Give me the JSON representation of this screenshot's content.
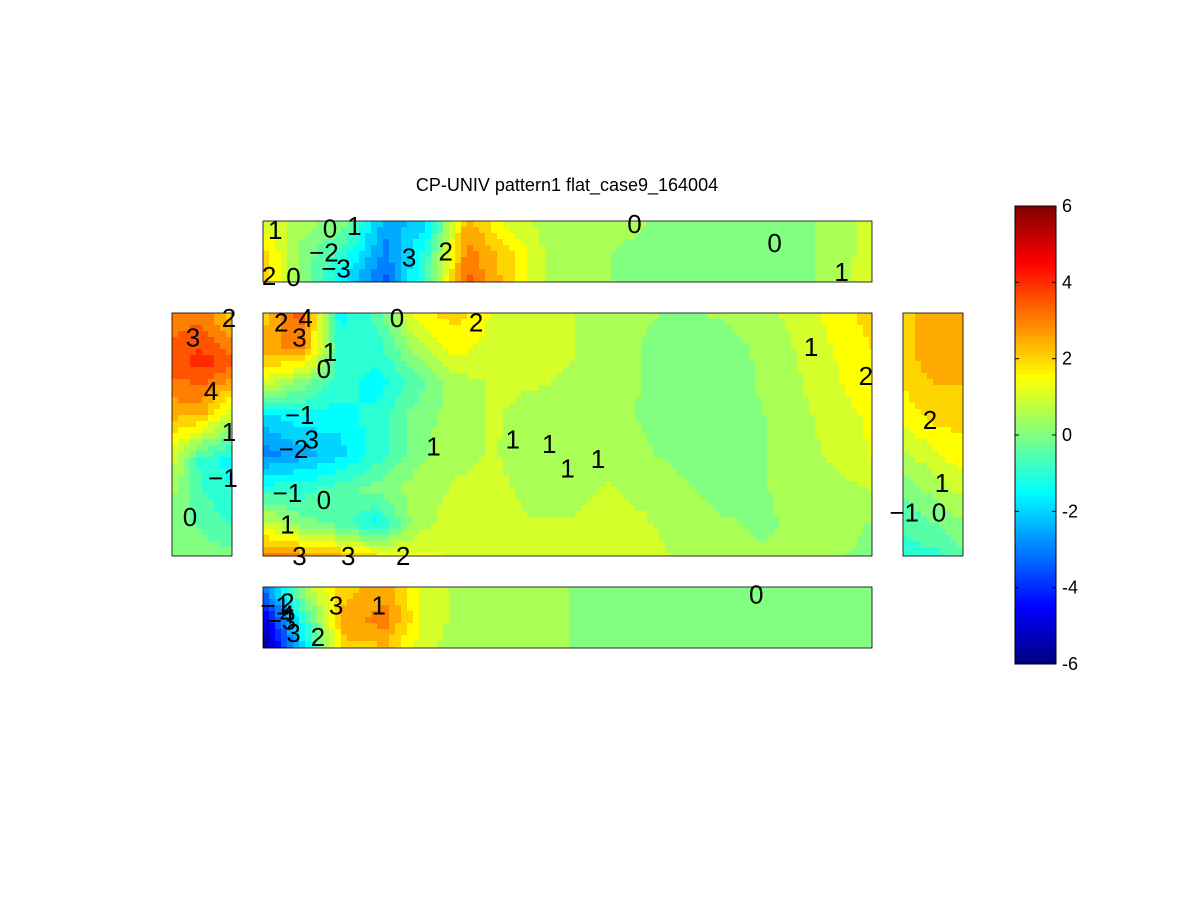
{
  "chart_data": {
    "type": "heatmap",
    "title": "CP-UNIV pattern1 flat_case9_164004",
    "colormap": "jet",
    "clim": [
      -6,
      6
    ],
    "colorbar": {
      "ticks": [
        "-6",
        "-4",
        "-2",
        "0",
        "2",
        "4",
        "6"
      ],
      "tick_values": [
        -6,
        -4,
        -2,
        0,
        2,
        4,
        6
      ]
    },
    "panels": [
      {
        "name": "top",
        "grid": [
          [
            1.0,
            0.5,
            0.0,
            -2.5,
            -2.0,
            2.5,
            1.0,
            0.5,
            0.4,
            0.3,
            0.2,
            0.0,
            -0.1,
            0.0,
            0.5,
            1.0
          ],
          [
            2.0,
            0.0,
            -1.0,
            -3.0,
            -1.0,
            3.0,
            2.0,
            0.6,
            0.3,
            0.2,
            0.1,
            0.0,
            -0.1,
            0.0,
            0.5,
            1.0
          ],
          [
            2.0,
            0.0,
            -2.0,
            -3.5,
            -0.5,
            3.5,
            2.0,
            0.6,
            0.3,
            0.2,
            0.0,
            -0.1,
            -0.2,
            0.0,
            0.5,
            1.2
          ]
        ],
        "contour_labels": [
          {
            "text": "1",
            "u": 0.02,
            "v": 0.15
          },
          {
            "text": "0",
            "u": 0.11,
            "v": 0.12
          },
          {
            "text": "1",
            "u": 0.15,
            "v": 0.08
          },
          {
            "text": "−2",
            "u": 0.1,
            "v": 0.52
          },
          {
            "text": "−3",
            "u": 0.12,
            "v": 0.78
          },
          {
            "text": "2",
            "u": 0.01,
            "v": 0.9
          },
          {
            "text": "0",
            "u": 0.05,
            "v": 0.92
          },
          {
            "text": "3",
            "u": 0.24,
            "v": 0.6
          },
          {
            "text": "2",
            "u": 0.3,
            "v": 0.5
          },
          {
            "text": "0",
            "u": 0.61,
            "v": 0.05
          },
          {
            "text": "0",
            "u": 0.84,
            "v": 0.36
          },
          {
            "text": "1",
            "u": 0.95,
            "v": 0.84
          }
        ]
      },
      {
        "name": "center",
        "grid": [
          [
            2.0,
            3.5,
            -1.5,
            -0.5,
            1.5,
            2.0,
            1.2,
            1.0,
            0.8,
            0.5,
            0.3,
            0.2,
            0.3,
            0.5,
            1.0,
            1.5,
            2.0
          ],
          [
            2.5,
            3.0,
            -1.0,
            -1.0,
            0.5,
            1.5,
            1.0,
            0.9,
            0.8,
            0.5,
            0.2,
            0.0,
            0.1,
            0.3,
            0.8,
            1.3,
            1.8
          ],
          [
            1.0,
            0.0,
            -1.0,
            -1.5,
            -0.5,
            0.5,
            0.8,
            0.8,
            0.7,
            0.5,
            0.2,
            0.0,
            0.0,
            0.3,
            0.7,
            1.2,
            1.6
          ],
          [
            -2.0,
            -1.5,
            -1.5,
            -1.0,
            0.0,
            0.5,
            0.8,
            0.6,
            0.5,
            0.4,
            0.2,
            0.0,
            0.0,
            0.2,
            0.6,
            1.0,
            1.4
          ],
          [
            -3.0,
            -2.5,
            -2.0,
            -1.0,
            0.0,
            0.6,
            0.8,
            0.5,
            0.4,
            0.5,
            0.3,
            0.1,
            0.0,
            0.2,
            0.5,
            0.9,
            1.3
          ],
          [
            -1.0,
            -1.0,
            -0.5,
            0.0,
            0.5,
            0.8,
            0.9,
            0.6,
            0.5,
            0.8,
            0.6,
            0.3,
            0.1,
            0.2,
            0.4,
            0.6,
            0.8
          ],
          [
            1.0,
            0.0,
            -0.5,
            -1.5,
            0.5,
            1.0,
            0.9,
            0.8,
            0.8,
            1.0,
            0.8,
            0.5,
            0.3,
            0.2,
            0.3,
            0.4,
            0.2
          ],
          [
            3.0,
            3.0,
            2.5,
            2.0,
            1.5,
            1.2,
            1.0,
            0.9,
            1.0,
            1.0,
            1.0,
            0.6,
            0.4,
            0.3,
            0.3,
            0.3,
            0.1
          ]
        ],
        "contour_labels": [
          {
            "text": "2",
            "u": 0.03,
            "v": 0.04
          },
          {
            "text": "4",
            "u": 0.07,
            "v": 0.02
          },
          {
            "text": "3",
            "u": 0.06,
            "v": 0.1
          },
          {
            "text": "1",
            "u": 0.11,
            "v": 0.16
          },
          {
            "text": "0",
            "u": 0.1,
            "v": 0.23
          },
          {
            "text": "0",
            "u": 0.22,
            "v": 0.02
          },
          {
            "text": "2",
            "u": 0.35,
            "v": 0.04
          },
          {
            "text": "−1",
            "u": 0.06,
            "v": 0.42
          },
          {
            "text": "−2",
            "u": 0.05,
            "v": 0.56
          },
          {
            "text": "3",
            "u": 0.08,
            "v": 0.52
          },
          {
            "text": "−1",
            "u": 0.04,
            "v": 0.74
          },
          {
            "text": "0",
            "u": 0.1,
            "v": 0.77
          },
          {
            "text": "1",
            "u": 0.04,
            "v": 0.87
          },
          {
            "text": "3",
            "u": 0.06,
            "v": 1.0
          },
          {
            "text": "3",
            "u": 0.14,
            "v": 1.0
          },
          {
            "text": "2",
            "u": 0.23,
            "v": 1.0
          },
          {
            "text": "1",
            "u": 0.28,
            "v": 0.55
          },
          {
            "text": "1",
            "u": 0.41,
            "v": 0.52
          },
          {
            "text": "1",
            "u": 0.47,
            "v": 0.54
          },
          {
            "text": "1",
            "u": 0.5,
            "v": 0.64
          },
          {
            "text": "1",
            "u": 0.55,
            "v": 0.6
          },
          {
            "text": "1",
            "u": 0.9,
            "v": 0.14
          },
          {
            "text": "2",
            "u": 0.99,
            "v": 0.26
          }
        ]
      },
      {
        "name": "left",
        "grid": [
          [
            3.0,
            3.0,
            2.0
          ],
          [
            3.5,
            4.0,
            3.5
          ],
          [
            2.5,
            2.5,
            1.0
          ],
          [
            1.0,
            -1.0,
            -1.5
          ],
          [
            0.0,
            -0.5,
            -1.0
          ],
          [
            0.0,
            0.0,
            0.0
          ]
        ],
        "contour_labels": [
          {
            "text": "2",
            "u": 0.95,
            "v": 0.02
          },
          {
            "text": "3",
            "u": 0.35,
            "v": 0.1
          },
          {
            "text": "4",
            "u": 0.65,
            "v": 0.32
          },
          {
            "text": "1",
            "u": 0.95,
            "v": 0.49
          },
          {
            "text": "−1",
            "u": 0.85,
            "v": 0.68
          },
          {
            "text": "0",
            "u": 0.3,
            "v": 0.84
          }
        ]
      },
      {
        "name": "right",
        "grid": [
          [
            2.0,
            2.5,
            2.5
          ],
          [
            2.0,
            2.5,
            2.5
          ],
          [
            1.5,
            2.0,
            2.0
          ],
          [
            0.5,
            1.0,
            1.5
          ],
          [
            -0.5,
            0.0,
            0.5
          ],
          [
            -1.0,
            -1.0,
            -0.5
          ]
        ],
        "contour_labels": [
          {
            "text": "2",
            "u": 0.45,
            "v": 0.44
          },
          {
            "text": "1",
            "u": 0.65,
            "v": 0.7
          },
          {
            "text": "−1",
            "u": 0.02,
            "v": 0.82
          },
          {
            "text": "0",
            "u": 0.6,
            "v": 0.82
          }
        ]
      },
      {
        "name": "bottom",
        "grid": [
          [
            -3.0,
            0.5,
            2.0,
            2.5,
            1.0,
            0.6,
            0.4,
            0.3,
            0.2,
            0.1,
            0.0,
            0.0,
            0.0,
            0.0,
            0.0,
            0.0
          ],
          [
            -5.0,
            -1.0,
            2.5,
            3.0,
            1.0,
            0.5,
            0.4,
            0.3,
            0.2,
            0.1,
            0.0,
            0.0,
            0.0,
            0.0,
            0.0,
            0.0
          ],
          [
            -6.0,
            -2.0,
            2.0,
            2.0,
            0.8,
            0.5,
            0.4,
            0.3,
            0.2,
            0.1,
            0.0,
            0.0,
            0.0,
            0.0,
            0.0,
            0.0
          ]
        ],
        "contour_labels": [
          {
            "text": "−1",
            "u": 0.02,
            "v": 0.3
          },
          {
            "text": "2",
            "u": 0.04,
            "v": 0.25
          },
          {
            "text": "−3",
            "u": 0.03,
            "v": 0.55
          },
          {
            "text": "4",
            "u": 0.04,
            "v": 0.45
          },
          {
            "text": "3",
            "u": 0.05,
            "v": 0.75
          },
          {
            "text": "2",
            "u": 0.09,
            "v": 0.82
          },
          {
            "text": "3",
            "u": 0.12,
            "v": 0.3
          },
          {
            "text": "1",
            "u": 0.19,
            "v": 0.3
          },
          {
            "text": "0",
            "u": 0.81,
            "v": 0.12
          }
        ]
      }
    ]
  }
}
